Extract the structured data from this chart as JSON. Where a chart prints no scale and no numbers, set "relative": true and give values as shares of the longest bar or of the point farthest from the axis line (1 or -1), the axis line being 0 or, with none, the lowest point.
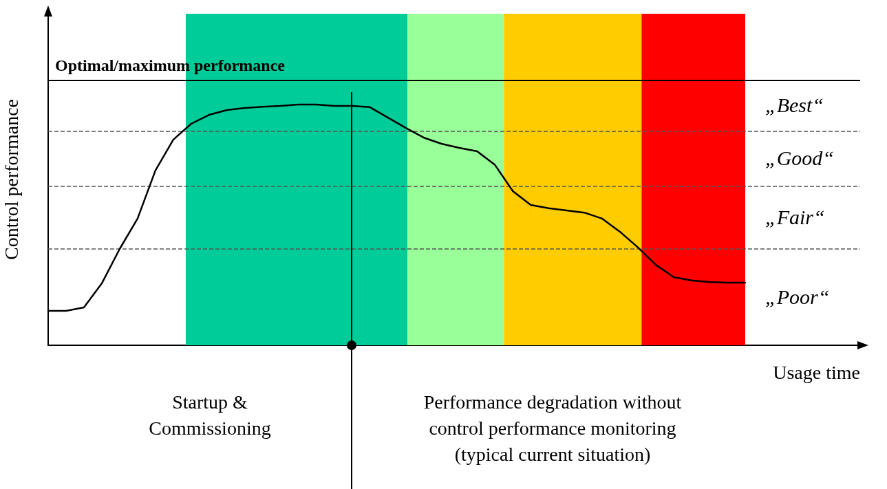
{
  "chart_data": {
    "type": "line",
    "relative": true,
    "xlabel": "Usage time",
    "ylabel": "Control performance",
    "categories": [
      null,
      null,
      null,
      null,
      null,
      null,
      null,
      null,
      null,
      null,
      null,
      null,
      null,
      null,
      null,
      null,
      null,
      null,
      null,
      null,
      null,
      null,
      null,
      null,
      null,
      null,
      null,
      null,
      null,
      null,
      null,
      null,
      null,
      null,
      null,
      null,
      null,
      null,
      null,
      null
    ],
    "series": [
      {
        "color": "#000000",
        "values": [
          0.143,
          0.143,
          0.157,
          0.257,
          0.4,
          0.526,
          0.726,
          0.854,
          0.92,
          0.957,
          0.977,
          0.986,
          0.991,
          0.994,
          1,
          1,
          0.994,
          0.994,
          0.989,
          0.946,
          0.903,
          0.863,
          0.837,
          0.82,
          0.806,
          0.749,
          0.64,
          0.583,
          0.569,
          0.56,
          0.551,
          0.526,
          0.471,
          0.406,
          0.334,
          0.283,
          0.269,
          0.263,
          0.26,
          0.26
        ]
      }
    ],
    "ref_lines": [
      {
        "axis": "y",
        "value": 1.1,
        "label": "Optimal/maximum performance",
        "color": "#000000",
        "line_style": "solid"
      },
      {
        "axis": "y",
        "value": 0.891,
        "color": "#555555",
        "line_style": "dashed"
      },
      {
        "axis": "y",
        "value": 0.663,
        "color": "#555555",
        "line_style": "dashed"
      },
      {
        "axis": "y",
        "value": 0.397,
        "color": "#555555",
        "line_style": "dashed"
      }
    ],
    "annotations": [
      "„Best“",
      "„Good“",
      "„Fair“",
      "„Poor“",
      "Startup &\nCommissioning",
      "Performance degradation without\ncontrol performance monitoring\n(typical current situation)"
    ],
    "marker": "none",
    "line_style": "solid",
    "grid": false
  }
}
